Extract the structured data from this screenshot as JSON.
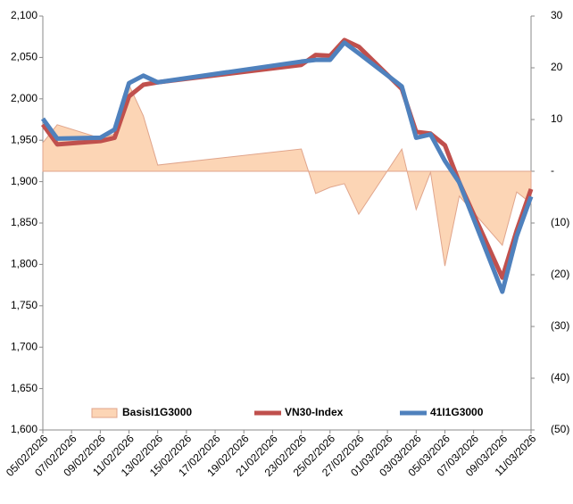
{
  "chart_data": {
    "type": "line",
    "x": [
      "05/02/2026",
      "06/02/2026",
      "09/02/2026",
      "10/02/2026",
      "11/02/2026",
      "12/02/2026",
      "13/02/2026",
      "23/02/2026",
      "24/02/2026",
      "25/02/2026",
      "26/02/2026",
      "27/02/2026",
      "02/03/2026",
      "03/03/2026",
      "04/03/2026",
      "05/03/2026",
      "06/03/2026",
      "09/03/2026",
      "10/03/2026",
      "11/03/2026"
    ],
    "series": [
      {
        "name": "BasisI1G3000",
        "type": "area",
        "axis": "y2",
        "color": "#fcd5b5",
        "values": [
          5.5,
          9,
          6.4,
          7.2,
          16.7,
          10.7,
          1.2,
          4.3,
          -4.3,
          -3.1,
          -2.4,
          -8.3,
          4.3,
          -7.4,
          -0.2,
          -18.3,
          -4.8,
          -14.3,
          -4,
          -6.2
        ]
      },
      {
        "name": "VN30-Index",
        "type": "line",
        "color": "#c0504d",
        "values": [
          1969,
          1945,
          1949,
          1953,
          2003,
          2017,
          2020,
          2041,
          2053,
          2052,
          2071,
          2063,
          2012,
          1960,
          1958,
          1944,
          1899,
          1784,
          1841,
          1891
        ]
      },
      {
        "name": "41I1G3000",
        "type": "line",
        "color": "#4f81bd",
        "values": [
          1976,
          1952,
          1953,
          1963,
          2019,
          2028,
          2020,
          2045,
          2047,
          2047,
          2068,
          2055,
          2015,
          1953,
          1957,
          1925,
          1899,
          1767,
          1834,
          1882
        ]
      }
    ],
    "xlim": [
      "05/02/2026",
      "11/03/2026"
    ],
    "xticks": [
      "05/02/2026",
      "07/02/2026",
      "09/02/2026",
      "11/02/2026",
      "13/02/2026",
      "15/02/2026",
      "17/02/2026",
      "19/02/2026",
      "21/02/2026",
      "23/02/2026",
      "25/02/2026",
      "27/02/2026",
      "01/03/2026",
      "03/03/2026",
      "05/03/2026",
      "07/03/2026",
      "09/03/2026",
      "11/03/2026"
    ],
    "ylim": [
      1600,
      2100
    ],
    "yticks": [
      {
        "value": 1600,
        "label": "1,600"
      },
      {
        "value": 1650,
        "label": "1,650"
      },
      {
        "value": 1700,
        "label": "1,700"
      },
      {
        "value": 1750,
        "label": "1,750"
      },
      {
        "value": 1800,
        "label": "1,800"
      },
      {
        "value": 1850,
        "label": "1,850"
      },
      {
        "value": 1900,
        "label": "1,900"
      },
      {
        "value": 1950,
        "label": "1,950"
      },
      {
        "value": 2000,
        "label": "2,000"
      },
      {
        "value": 2050,
        "label": "2,050"
      },
      {
        "value": 2100,
        "label": "2,100"
      }
    ],
    "y2lim": [
      -50,
      30
    ],
    "y2ticks": [
      30,
      20,
      10,
      {
        "value": 0,
        "label": "-"
      },
      {
        "value": -10,
        "label": "(10)"
      },
      {
        "value": -20,
        "label": "(20)"
      },
      {
        "value": -30,
        "label": "(30)"
      },
      {
        "value": -40,
        "label": "(40)"
      },
      {
        "value": -50,
        "label": "(50)"
      }
    ],
    "legend": "bottom"
  }
}
